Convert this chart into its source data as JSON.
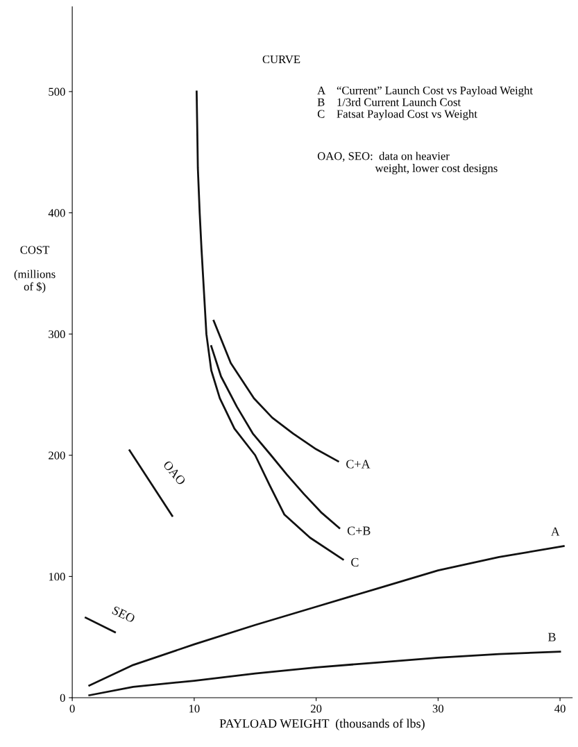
{
  "chart_data": {
    "type": "line",
    "xlabel": "PAYLOAD WEIGHT  (thousands of lbs)",
    "ylabel": "COST\n\n(millions\nof $)",
    "xlim": [
      0,
      41
    ],
    "ylim": [
      0,
      570
    ],
    "xticks": [
      0,
      10,
      20,
      30,
      40
    ],
    "yticks": [
      0,
      100,
      200,
      300,
      400,
      500
    ],
    "grid": false,
    "legend": false,
    "line_style": "solid",
    "series": [
      {
        "name": "C",
        "color": "#111111",
        "x": [
          10.2,
          10.25,
          10.3,
          10.45,
          10.6,
          10.8,
          11.0,
          11.4,
          12.1,
          13.3,
          15.0,
          16.2,
          17.4,
          19.5,
          22.2
        ],
        "values": [
          500,
          470,
          437,
          400,
          370,
          335,
          300,
          270,
          247,
          222,
          200,
          175,
          151,
          132,
          114
        ]
      },
      {
        "name": "C+B",
        "color": "#111111",
        "x": [
          11.4,
          12.2,
          13.5,
          14.8,
          16.3,
          17.6,
          19.0,
          20.4,
          21.9
        ],
        "values": [
          290,
          265,
          240,
          218,
          200,
          184,
          168,
          153,
          140
        ]
      },
      {
        "name": "C+A",
        "color": "#111111",
        "x": [
          11.6,
          13.0,
          14.9,
          16.4,
          18.1,
          20.0,
          21.8
        ],
        "values": [
          311,
          276,
          247,
          231,
          218,
          205,
          195
        ]
      },
      {
        "name": "A",
        "color": "#111111",
        "x": [
          1.4,
          5,
          10,
          15,
          20,
          25,
          30,
          35,
          40.3
        ],
        "values": [
          10,
          27,
          44,
          60,
          75,
          90,
          105,
          116,
          125
        ]
      },
      {
        "name": "B",
        "color": "#111111",
        "x": [
          1.4,
          5,
          10,
          15,
          20,
          25,
          30,
          35,
          40
        ],
        "values": [
          2,
          9,
          14,
          20,
          25,
          29,
          33,
          36,
          38
        ]
      },
      {
        "name": "OAO",
        "color": "#111111",
        "x": [
          4.7,
          8.2
        ],
        "values": [
          204,
          150
        ]
      },
      {
        "name": "SEO",
        "color": "#111111",
        "x": [
          1.1,
          3.5
        ],
        "values": [
          66,
          54
        ]
      }
    ],
    "annotations": [
      "CURVE",
      "A    “Current” Launch Cost vs Payload Weight",
      "B    1/3rd Current Launch Cost",
      "C    Fatsat Payload Cost vs Weight",
      "OAO, SEO:  data on heavier\n                    weight, lower cost designs"
    ]
  }
}
